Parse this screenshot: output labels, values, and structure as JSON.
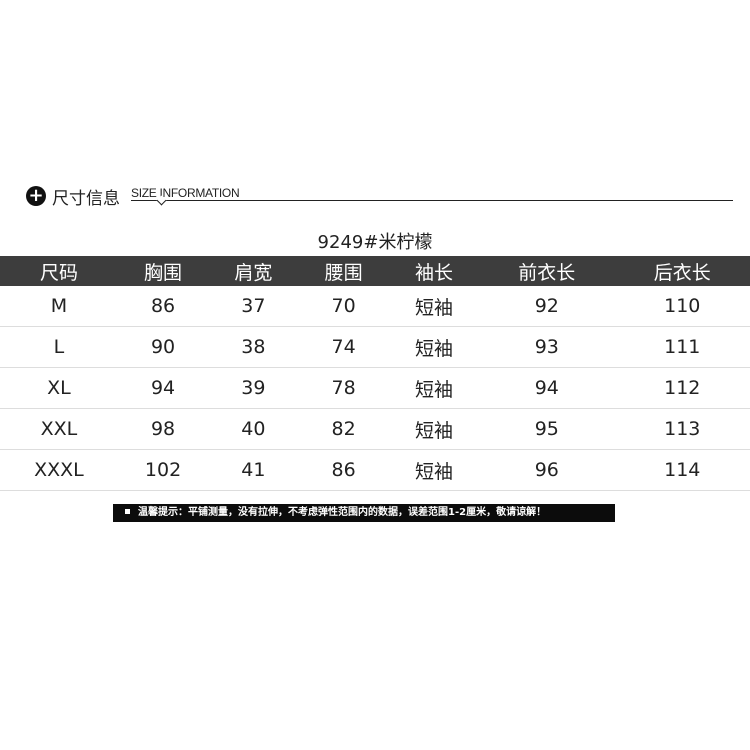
{
  "header": {
    "icon": "plus-circle-icon",
    "title_cn": "尺寸信息",
    "title_en": "SIZE INFORMATION"
  },
  "product_title": "9249#米柠檬",
  "table": {
    "columns": [
      "尺码",
      "胸围",
      "肩宽",
      "腰围",
      "袖长",
      "前衣长",
      "后衣长"
    ],
    "rows": [
      [
        "M",
        "86",
        "37",
        "70",
        "短袖",
        "92",
        "110"
      ],
      [
        "L",
        "90",
        "38",
        "74",
        "短袖",
        "93",
        "111"
      ],
      [
        "XL",
        "94",
        "39",
        "78",
        "短袖",
        "94",
        "112"
      ],
      [
        "XXL",
        "98",
        "40",
        "82",
        "短袖",
        "95",
        "113"
      ],
      [
        "XXXL",
        "102",
        "41",
        "86",
        "短袖",
        "96",
        "114"
      ]
    ]
  },
  "note": "温馨提示：平铺测量，没有拉伸，不考虑弹性范围内的数据，误差范围1-2厘米，敬请谅解！"
}
